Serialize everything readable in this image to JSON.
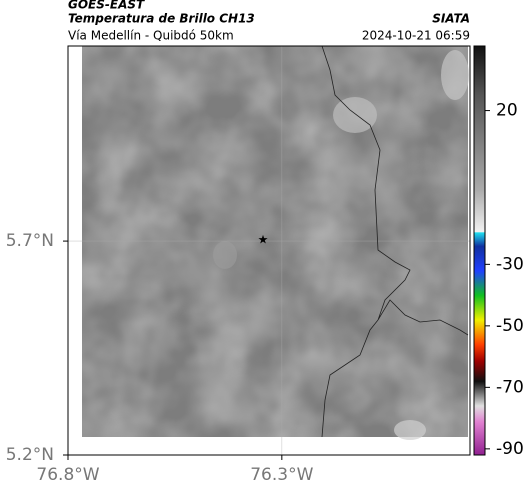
{
  "header": {
    "satellite": "GOES-EAST",
    "product": "Temperatura de Brillo CH13",
    "region": "Vía Medellín - Quibdó 50km",
    "source": "SIATA",
    "timestamp": "2024-10-21 06:59"
  },
  "map": {
    "xlim": [
      -76.8,
      -75.86
    ],
    "ylim": [
      5.2,
      6.156
    ],
    "xticks": [
      {
        "value": -76.8,
        "label": "76.8°W"
      },
      {
        "value": -76.3,
        "label": "76.3°W"
      }
    ],
    "yticks": [
      {
        "value": 5.7,
        "label": "5.7°N"
      },
      {
        "value": 5.2,
        "label": "5.2°N"
      }
    ],
    "grid": true
  },
  "colorbar": {
    "lim": [
      -92,
      41
    ],
    "ticks": [
      20,
      -30,
      -50,
      -70,
      -90
    ]
  }
}
